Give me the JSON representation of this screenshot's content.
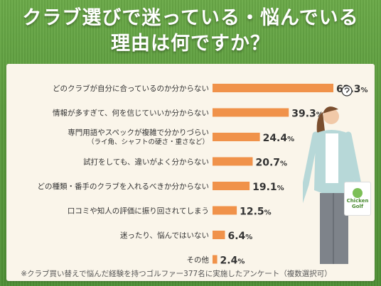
{
  "header": {
    "title_line1": "クラブ選びで迷っている・悩んでいる",
    "title_line2": "理由は何ですか？"
  },
  "footnote": "※クラブ買い替えで悩んだ経験を持つゴルファー377名に実施したアンケート（複数選択可）",
  "logo": {
    "text_line1": "Chicken",
    "text_line2": "Golf"
  },
  "colors": {
    "bar": "#f0924a",
    "title": "#ffffff",
    "panel": "#faf5ea",
    "background": "#5a9a3c"
  },
  "chart_data": {
    "type": "bar",
    "orientation": "horizontal",
    "unit": "%",
    "categories": [
      [
        "どのクラブが自分に合っているのか分からない"
      ],
      [
        "情報が多すぎて、何を信じていいか分からない"
      ],
      [
        "専門用語やスペックが複雑で分かりづらい",
        "（ライ角、シャフトの硬さ・重さなど）"
      ],
      [
        "試打をしても、違いがよく分からない"
      ],
      [
        "どの種類・番手のクラブを入れるべきか分からない"
      ],
      [
        "口コミや知人の評価に振り回されてしまう"
      ],
      [
        "迷ったり、悩んではいない"
      ],
      [
        "その他"
      ]
    ],
    "values": [
      62.3,
      39.3,
      24.4,
      20.7,
      19.1,
      12.5,
      6.4,
      2.4
    ],
    "value_labels": [
      "62.3",
      "39.3",
      "24.4",
      "20.7",
      "19.1",
      "12.5",
      "6.4",
      "2.4"
    ],
    "xlim": [
      0,
      62.3
    ],
    "grid": false,
    "legend": "none"
  }
}
